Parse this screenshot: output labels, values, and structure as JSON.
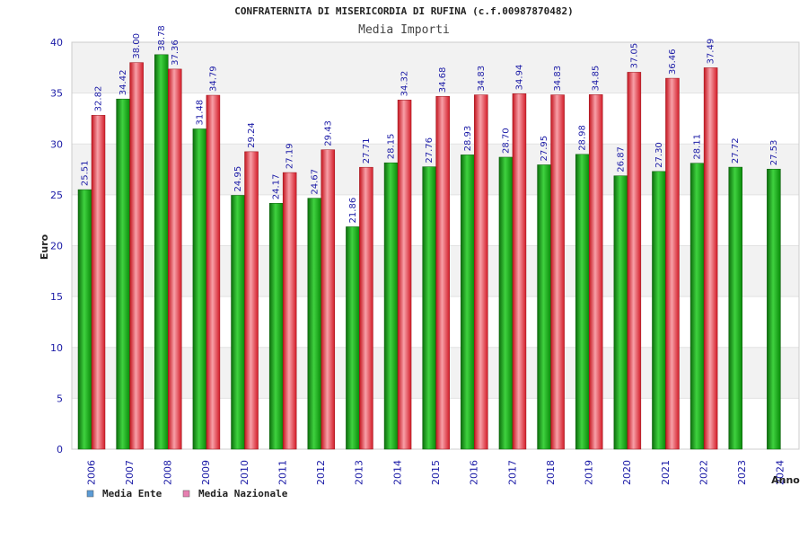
{
  "chart_data": {
    "type": "bar",
    "title": "CONFRATERNITA DI MISERICORDIA DI RUFINA (c.f.00987870482)",
    "subtitle": "Media Importi",
    "xlabel": "Anno",
    "ylabel": "Euro",
    "ylim": [
      0,
      40
    ],
    "yticks": [
      0,
      5,
      10,
      15,
      20,
      25,
      30,
      35,
      40
    ],
    "grid": true,
    "legend_position": "bottom-left",
    "categories": [
      "2006",
      "2007",
      "2008",
      "2009",
      "2010",
      "2011",
      "2012",
      "2013",
      "2014",
      "2015",
      "2016",
      "2017",
      "2018",
      "2019",
      "2020",
      "2021",
      "2022",
      "2023",
      "2024"
    ],
    "series": [
      {
        "name": "Media Ente",
        "legend_color": "#5b9bd5",
        "bar_color": "#1fa81f",
        "values": [
          25.51,
          34.42,
          38.78,
          31.48,
          24.95,
          24.17,
          24.67,
          21.86,
          28.15,
          27.76,
          28.93,
          28.7,
          27.95,
          28.98,
          26.87,
          27.3,
          28.11,
          27.72,
          27.53
        ],
        "labels": [
          "25.51",
          "34.42",
          "38.78",
          "31.48",
          "24.95",
          "24.17",
          "24.67",
          "21.86",
          "28.15",
          "27.76",
          "28.93",
          "28.70",
          "27.95",
          "28.98",
          "26.87",
          "27.30",
          "28.11",
          "27.72",
          "27.53"
        ]
      },
      {
        "name": "Media Nazionale",
        "legend_color": "#e77fb0",
        "bar_color": "#e8303a",
        "values": [
          32.82,
          38.0,
          37.36,
          34.79,
          29.24,
          27.19,
          29.43,
          27.71,
          34.32,
          34.68,
          34.83,
          34.94,
          34.83,
          34.85,
          37.05,
          36.46,
          37.49,
          null,
          null
        ],
        "labels": [
          "32.82",
          "38.00",
          "37.36",
          "34.79",
          "29.24",
          "27.19",
          "29.43",
          "27.71",
          "34.32",
          "34.68",
          "34.83",
          "34.94",
          "34.83",
          "34.85",
          "37.05",
          "36.46",
          "37.49",
          null,
          null
        ]
      }
    ]
  }
}
